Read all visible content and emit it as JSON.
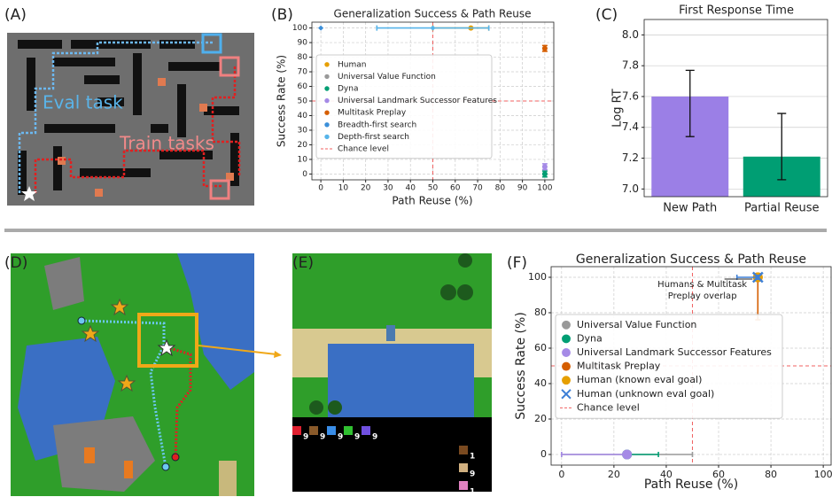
{
  "panel_labels": [
    "(A)",
    "(B)",
    "(C)",
    "(D)",
    "(E)",
    "(F)"
  ],
  "panel_A": {
    "eval_label": "Eval task",
    "train_label": "Train tasks"
  },
  "panel_E": {
    "inventory": [
      9,
      9,
      9,
      9,
      9,
      1,
      9,
      1
    ]
  },
  "chart_data": [
    {
      "type": "scatter",
      "title": "Generalization Success & Path Reuse",
      "x_label": "Path Reuse (%)",
      "y_label": "Success Rate (%)",
      "xlim": [
        -4,
        104
      ],
      "ylim": [
        -4,
        104
      ],
      "xticks": [
        0,
        10,
        20,
        30,
        40,
        50,
        60,
        70,
        80,
        90,
        100
      ],
      "yticks": [
        0,
        10,
        20,
        30,
        40,
        50,
        60,
        70,
        80,
        90,
        100
      ],
      "grid": true,
      "legend": "center left",
      "series": [
        {
          "name": "Human",
          "color": "#e69f00",
          "marker": "o",
          "x": [
            67
          ],
          "values": [
            100
          ],
          "xerr": [
            [
              17,
              8
            ]
          ]
        },
        {
          "name": "Universal Value Function",
          "color": "#999999",
          "marker": "o",
          "x": [
            100
          ],
          "values": [
            0
          ]
        },
        {
          "name": "Dyna",
          "color": "#009e73",
          "marker": "o",
          "x": [
            100
          ],
          "values": [
            0
          ],
          "yerr": [
            [
              2,
              2
            ]
          ]
        },
        {
          "name": "Universal Landmark Successor Features",
          "color": "#a58ae6",
          "marker": "o",
          "x": [
            100
          ],
          "values": [
            5
          ],
          "yerr": [
            [
              2,
              2
            ]
          ]
        },
        {
          "name": "Multitask Preplay",
          "color": "#d55e00",
          "marker": "o",
          "x": [
            100
          ],
          "values": [
            86
          ],
          "yerr": [
            [
              2,
              2
            ]
          ]
        },
        {
          "name": "Breadth-first search",
          "color": "#3b8fd9",
          "marker": "D",
          "x": [
            0
          ],
          "values": [
            100
          ]
        },
        {
          "name": "Depth-first search",
          "color": "#56b4e9",
          "marker": "D",
          "x": [
            50
          ],
          "values": [
            100
          ],
          "xerr": [
            [
              25,
              25
            ]
          ]
        }
      ],
      "reference_line": {
        "name": "Chance level",
        "color": "#f06060",
        "x": 50,
        "y": 50
      }
    },
    {
      "type": "bar",
      "title": "First Response Time",
      "y_label": "Log RT",
      "categories": [
        "New Path",
        "Partial Reuse"
      ],
      "values": [
        7.6,
        7.21
      ],
      "errors": [
        [
          0.26,
          0.17
        ],
        [
          0.15,
          0.28
        ]
      ],
      "colors": [
        "#9b7fe6",
        "#009e73"
      ],
      "ylim": [
        6.95,
        8.1
      ],
      "yticks": [
        {
          "value": 7,
          "label": "7.0"
        },
        {
          "value": 7.2,
          "label": "7.2"
        },
        {
          "value": 7.4,
          "label": "7.4"
        },
        {
          "value": 7.6,
          "label": "7.6"
        },
        {
          "value": 7.8,
          "label": "7.8"
        },
        {
          "value": 8,
          "label": "8.0"
        }
      ],
      "grid": true
    },
    {
      "type": "scatter",
      "title": "Generalization Success & Path Reuse",
      "x_label": "Path Reuse (%)",
      "y_label": "Success Rate (%)",
      "xlim": [
        -4,
        103
      ],
      "ylim": [
        -6,
        106
      ],
      "xticks": [
        0,
        20,
        40,
        60,
        80,
        100
      ],
      "yticks": [
        0,
        20,
        40,
        60,
        80,
        100
      ],
      "grid": true,
      "legend": "center left",
      "annotation": [
        "Humans & Multitask",
        "Preplay overlap"
      ],
      "series": [
        {
          "name": "Universal Value Function",
          "color": "#999999",
          "marker": "o",
          "x": [
            25
          ],
          "values": [
            0
          ],
          "xerr": [
            [
              25,
              25
            ]
          ]
        },
        {
          "name": "Dyna",
          "color": "#009e73",
          "marker": "o",
          "x": [
            25
          ],
          "values": [
            0
          ],
          "xerr": [
            [
              0,
              12
            ]
          ]
        },
        {
          "name": "Universal Landmark Successor Features",
          "color": "#a58ae6",
          "marker": "o",
          "x": [
            25
          ],
          "values": [
            0
          ],
          "xerr": [
            [
              25,
              0
            ]
          ]
        },
        {
          "name": "Multitask Preplay",
          "color": "#d55e00",
          "marker": "o",
          "x": [
            75
          ],
          "values": [
            100
          ],
          "yerr": [
            [
              24,
              0
            ]
          ]
        },
        {
          "name": "Human (known eval goal)",
          "color": "#e69f00",
          "marker": "o",
          "x": [
            75
          ],
          "values": [
            100
          ]
        },
        {
          "name": "Human (unknown eval goal)",
          "color": "#3d7fd6",
          "marker": "x",
          "x": [
            75
          ],
          "values": [
            100
          ],
          "xerr": [
            [
              8,
              0
            ]
          ]
        }
      ],
      "reference_line": {
        "name": "Chance level",
        "color": "#f06060",
        "x": 50,
        "y": 50
      }
    }
  ]
}
